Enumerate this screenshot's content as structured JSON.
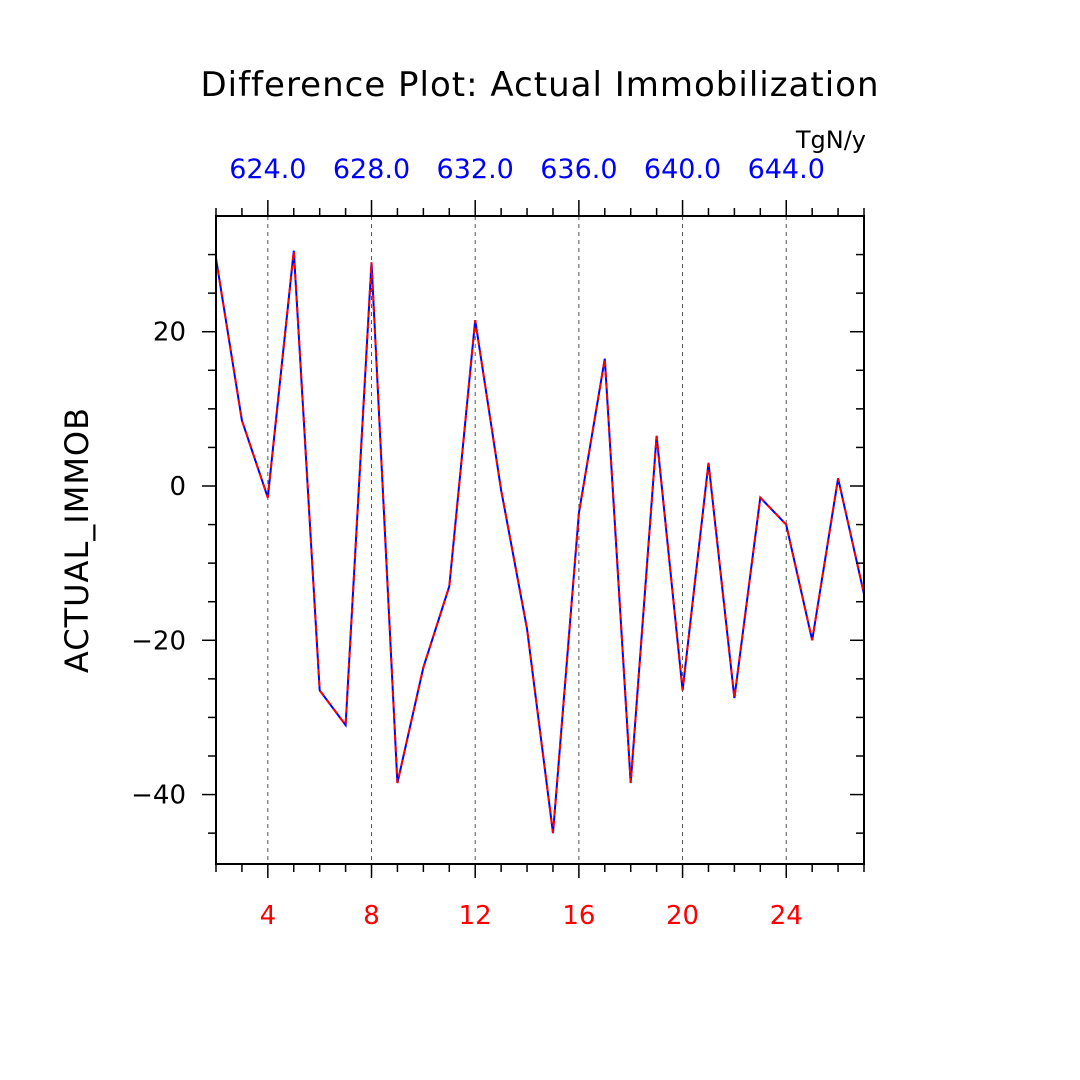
{
  "chart_data": {
    "type": "line",
    "title": "Difference Plot: Actual Immobilization",
    "ylabel": "ACTUAL_IMMOB",
    "units": "TgN/y",
    "xlim": [
      2,
      27
    ],
    "ylim": [
      -49,
      35
    ],
    "bottom_axis": {
      "ticks": [
        4,
        8,
        12,
        16,
        20,
        24
      ],
      "labels": [
        "4",
        "8",
        "12",
        "16",
        "20",
        "24"
      ],
      "color": "#ff0000"
    },
    "top_axis": {
      "labels": [
        "624.0",
        "628.0",
        "632.0",
        "636.0",
        "640.0",
        "644.0"
      ],
      "color": "#0000ff"
    },
    "y_axis": {
      "ticks": [
        20,
        0,
        -20,
        -40
      ],
      "labels": [
        "20",
        "0",
        "−20",
        "−40"
      ]
    },
    "grid": "vertical-dashed",
    "series": [
      {
        "color": "#0000ff",
        "x": [
          2,
          3,
          4,
          5,
          6,
          7,
          8,
          9,
          10,
          11,
          12,
          13,
          14,
          15,
          16,
          17,
          18,
          19,
          20,
          21,
          22,
          23,
          24,
          25,
          26,
          27
        ],
        "y": [
          29.5,
          8.5,
          -1.5,
          30.5,
          -26.5,
          -31.0,
          29.0,
          -38.5,
          -23.5,
          -13.0,
          21.5,
          -0.5,
          -18.5,
          -45.0,
          -3.5,
          16.5,
          -38.5,
          6.5,
          -26.5,
          3.0,
          -27.5,
          -1.5,
          -5.0,
          -20.0,
          1.0,
          -14.0
        ]
      },
      {
        "color": "#ff0000",
        "dashed": true,
        "x": [
          2,
          3,
          4,
          5,
          6,
          7,
          8,
          9,
          10,
          11,
          12,
          13,
          14,
          15,
          16,
          17,
          18,
          19,
          20,
          21,
          22,
          23,
          24,
          25,
          26,
          27
        ],
        "y": [
          29.5,
          8.5,
          -1.5,
          30.5,
          -26.5,
          -31.0,
          29.0,
          -38.5,
          -23.5,
          -13.0,
          21.5,
          -0.5,
          -18.5,
          -45.0,
          -3.5,
          16.5,
          -38.5,
          6.5,
          -26.5,
          3.0,
          -27.5,
          -1.5,
          -5.0,
          -20.0,
          1.0,
          -14.0
        ]
      }
    ]
  }
}
